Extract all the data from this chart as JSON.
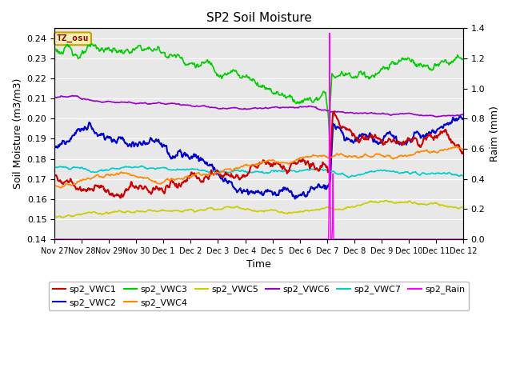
{
  "title": "SP2 Soil Moisture",
  "xlabel": "Time",
  "ylabel_left": "Soil Moisture (m3/m3)",
  "ylabel_right": "Raim (mm)",
  "ylim_left": [
    0.14,
    0.245
  ],
  "ylim_right": [
    0.0,
    1.4
  ],
  "bg_color": "#e8e8e8",
  "tz_label": "TZ_osu",
  "tz_bg": "#f5f0b0",
  "tz_border": "#c8a000",
  "tz_text_color": "#8b0000",
  "series_colors": {
    "sp2_VWC1": "#cc0000",
    "sp2_VWC2": "#0000cc",
    "sp2_VWC3": "#00cc00",
    "sp2_VWC4": "#ff8800",
    "sp2_VWC5": "#cccc00",
    "sp2_VWC6": "#9900cc",
    "sp2_VWC7": "#00cccc",
    "sp2_Rain": "#ff00ff"
  },
  "n_points": 720,
  "rain_event_day": 10.1,
  "rain_spike": 1.4,
  "yticks_left": [
    0.14,
    0.15,
    0.16,
    0.17,
    0.18,
    0.19,
    0.2,
    0.21,
    0.22,
    0.23,
    0.24
  ],
  "yticks_right": [
    0.0,
    0.2,
    0.4,
    0.6,
    0.8,
    1.0,
    1.2,
    1.4
  ],
  "xtick_labels": [
    "Nov 27",
    "Nov 28",
    "Nov 29",
    "Nov 30",
    "Dec 1",
    "Dec 2",
    "Dec 3",
    "Dec 4",
    "Dec 5",
    "Dec 6",
    "Dec 7",
    "Dec 8",
    "Dec 9",
    "Dec 10",
    "Dec 11",
    "Dec 12"
  ]
}
